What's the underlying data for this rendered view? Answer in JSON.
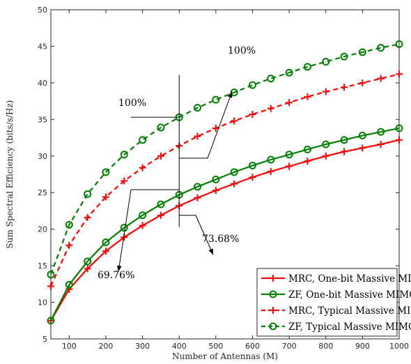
{
  "chart_data": {
    "type": "line",
    "xlabel": "Number of Antennas (M)",
    "ylabel": "Sum Spectral Efficiency (bits/s/Hz)",
    "xlim": [
      50,
      1000
    ],
    "ylim": [
      5,
      50
    ],
    "xticks": [
      100,
      200,
      300,
      400,
      500,
      600,
      700,
      800,
      900,
      1000
    ],
    "yticks": [
      5,
      10,
      15,
      20,
      25,
      30,
      35,
      40,
      45,
      50
    ],
    "grid": false,
    "legend_position": "bottom-right",
    "x": [
      50,
      100,
      150,
      200,
      250,
      300,
      350,
      400,
      450,
      500,
      550,
      600,
      650,
      700,
      750,
      800,
      850,
      900,
      950,
      1000
    ],
    "series": [
      {
        "name": "MRC, One-bit Massive MIMO",
        "color": "#ff0000",
        "line": "solid",
        "marker": "plus",
        "values": [
          7.5,
          11.8,
          14.6,
          17.0,
          18.9,
          20.5,
          21.9,
          23.2,
          24.3,
          25.3,
          26.2,
          27.1,
          27.9,
          28.6,
          29.3,
          30.0,
          30.6,
          31.1,
          31.6,
          32.2
        ]
      },
      {
        "name": "ZF, One-bit Massive MIMO",
        "color": "#008000",
        "line": "solid",
        "marker": "circle",
        "values": [
          7.5,
          12.4,
          15.6,
          18.2,
          20.2,
          21.9,
          23.4,
          24.7,
          25.8,
          26.8,
          27.8,
          28.7,
          29.5,
          30.2,
          30.9,
          31.6,
          32.2,
          32.8,
          33.3,
          33.8
        ]
      },
      {
        "name": "MRC, Typical Massive MIMO",
        "color": "#ff0000",
        "line": "dashed",
        "marker": "plus",
        "values": [
          12.2,
          17.8,
          21.6,
          24.4,
          26.6,
          28.4,
          30.0,
          31.4,
          32.7,
          33.8,
          34.8,
          35.7,
          36.5,
          37.3,
          38.1,
          38.8,
          39.4,
          40.0,
          40.6,
          41.2
        ]
      },
      {
        "name": "ZF, Typical Massive MIMO",
        "color": "#008000",
        "line": "dashed",
        "marker": "circle",
        "values": [
          13.8,
          20.6,
          24.8,
          27.8,
          30.2,
          32.2,
          33.9,
          35.3,
          36.6,
          37.7,
          38.7,
          39.7,
          40.6,
          41.4,
          42.2,
          42.9,
          43.6,
          44.2,
          44.8,
          45.3
        ]
      }
    ],
    "annotations": [
      {
        "text": "100%",
        "target": "upper"
      },
      {
        "text": "100%",
        "target": "upper-left"
      },
      {
        "text": "73.68%",
        "target": "lower-right"
      },
      {
        "text": "69.76%",
        "target": "lower-left"
      }
    ]
  }
}
